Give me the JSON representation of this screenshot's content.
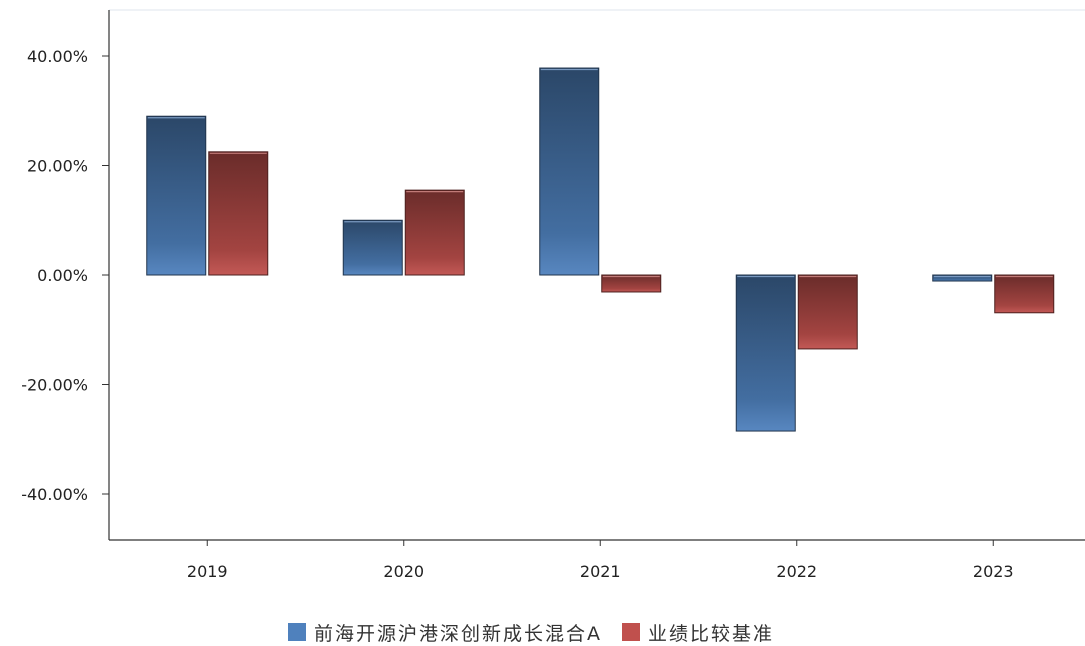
{
  "chart_data": {
    "type": "bar",
    "categories": [
      "2019",
      "2020",
      "2021",
      "2022",
      "2023"
    ],
    "series": [
      {
        "name": "前海开源沪港深创新成长混合A",
        "values": [
          29.0,
          10.0,
          37.8,
          -28.5,
          -1.1
        ],
        "color": "#4f81bd"
      },
      {
        "name": "业绩比较基准",
        "values": [
          22.5,
          15.5,
          -3.1,
          -13.5,
          -6.9
        ],
        "color": "#c0504d"
      }
    ],
    "ylim": [
      -48.4,
      48.4
    ],
    "yticks": [
      40,
      20,
      0,
      -20,
      -40
    ],
    "ytick_labels": [
      "40.00%",
      "20.00%",
      "0.00%",
      "-20.00%",
      "-40.00%"
    ],
    "grid": false,
    "legend_position": "bottom-center"
  }
}
